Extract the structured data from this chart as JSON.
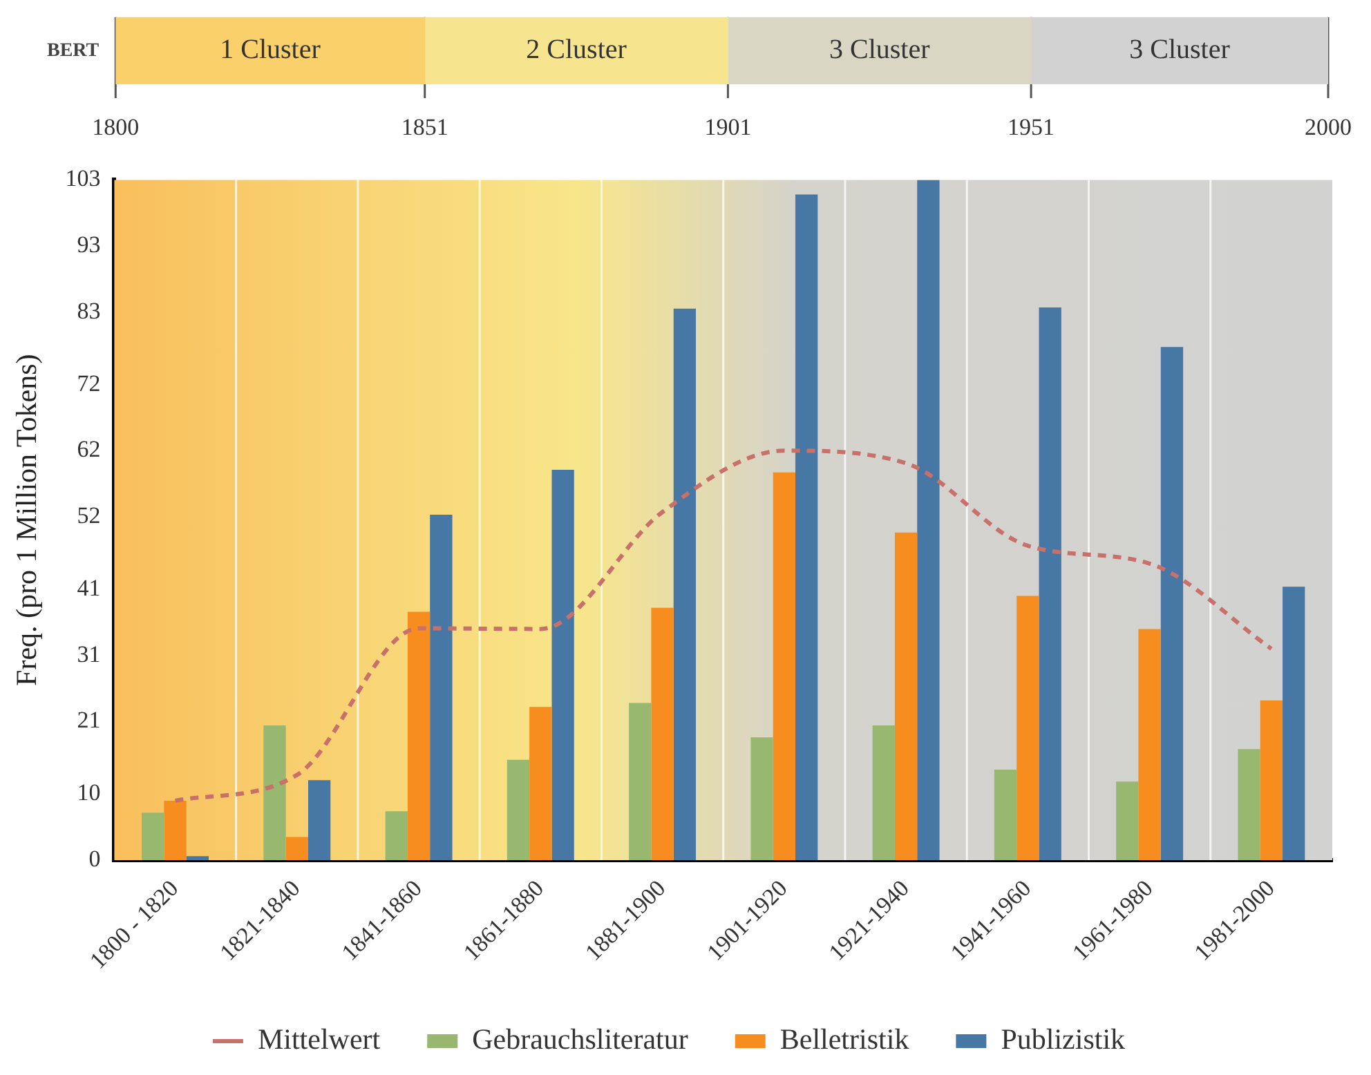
{
  "chart_data": [
    {
      "type": "bar",
      "orientation": "horizontal",
      "categories": [
        "BERT"
      ],
      "xlim": [
        1800,
        2000
      ],
      "xticks": [
        1800,
        1851,
        1901,
        1951,
        2000
      ],
      "grid": "x",
      "series": [
        {
          "name": "1 Cluster",
          "color": "#fad06a",
          "base": [
            1800
          ],
          "values": [
            51
          ]
        },
        {
          "name": "2 Cluster",
          "color": "#f7e48e",
          "base": [
            1851
          ],
          "values": [
            50
          ]
        },
        {
          "name": "3 Cluster",
          "color": "#d9d6c4",
          "base": [
            1901
          ],
          "values": [
            50
          ]
        },
        {
          "name": "3 Cluster",
          "color": "#d2d2d2",
          "base": [
            1951
          ],
          "values": [
            49
          ]
        }
      ]
    },
    {
      "type": "bar",
      "ylabel": "Freq. (pro 1 Million Tokens)",
      "categories": [
        "1800 - 1820",
        "1821-1840",
        "1841-1860",
        "1861-1880",
        "1881-1900",
        "1901-1920",
        "1921-1940",
        "1941-1960",
        "1961-1980",
        "1981-2000"
      ],
      "ylim": [
        0,
        103
      ],
      "yticks": [
        0,
        10,
        21,
        31,
        41,
        52,
        62,
        72,
        83,
        93,
        103
      ],
      "grid": "x",
      "legend": "bottom",
      "series": [
        {
          "name": "Gebrauchsliteratur",
          "color": "#98b86f",
          "values": [
            7.2,
            20.4,
            7.4,
            15.2,
            23.8,
            18.6,
            20.4,
            13.7,
            11.9,
            16.8
          ]
        },
        {
          "name": "Belletristik",
          "color": "#f68d1e",
          "values": [
            9.0,
            3.5,
            37.6,
            23.2,
            38.2,
            58.7,
            49.6,
            40.0,
            35.0,
            24.2
          ]
        },
        {
          "name": "Publizistik",
          "color": "#4677a5",
          "values": [
            0.6,
            12.1,
            52.3,
            59.1,
            83.5,
            100.8,
            103,
            83.7,
            77.7,
            41.4
          ]
        },
        {
          "name": "Mittelwert",
          "type": "line",
          "color": "#c8706a",
          "line_style": "dashed",
          "marker": "none",
          "values": [
            9.0,
            12.9,
            35.1,
            35.0,
            52.7,
            62.0,
            60.1,
            47.6,
            44.9,
            32.0
          ]
        }
      ]
    }
  ]
}
